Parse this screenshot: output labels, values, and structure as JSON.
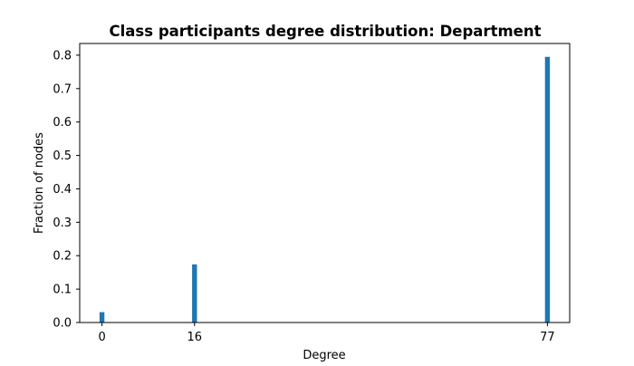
{
  "chart_data": {
    "type": "bar",
    "title": "Class participants degree distribution: Department",
    "xlabel": "Degree",
    "ylabel": "Fraction of nodes",
    "x": [
      0,
      16,
      77
    ],
    "values": [
      0.031,
      0.174,
      0.795
    ],
    "xticks": [
      "0",
      "16",
      "77"
    ],
    "yticks": [
      "0.0",
      "0.1",
      "0.2",
      "0.3",
      "0.4",
      "0.5",
      "0.6",
      "0.7",
      "0.8"
    ],
    "xlim": [
      -3.85,
      80.85
    ],
    "ylim": [
      0,
      0.835
    ],
    "bar_color": "#1f77b4",
    "grid": false,
    "legend": "none"
  }
}
